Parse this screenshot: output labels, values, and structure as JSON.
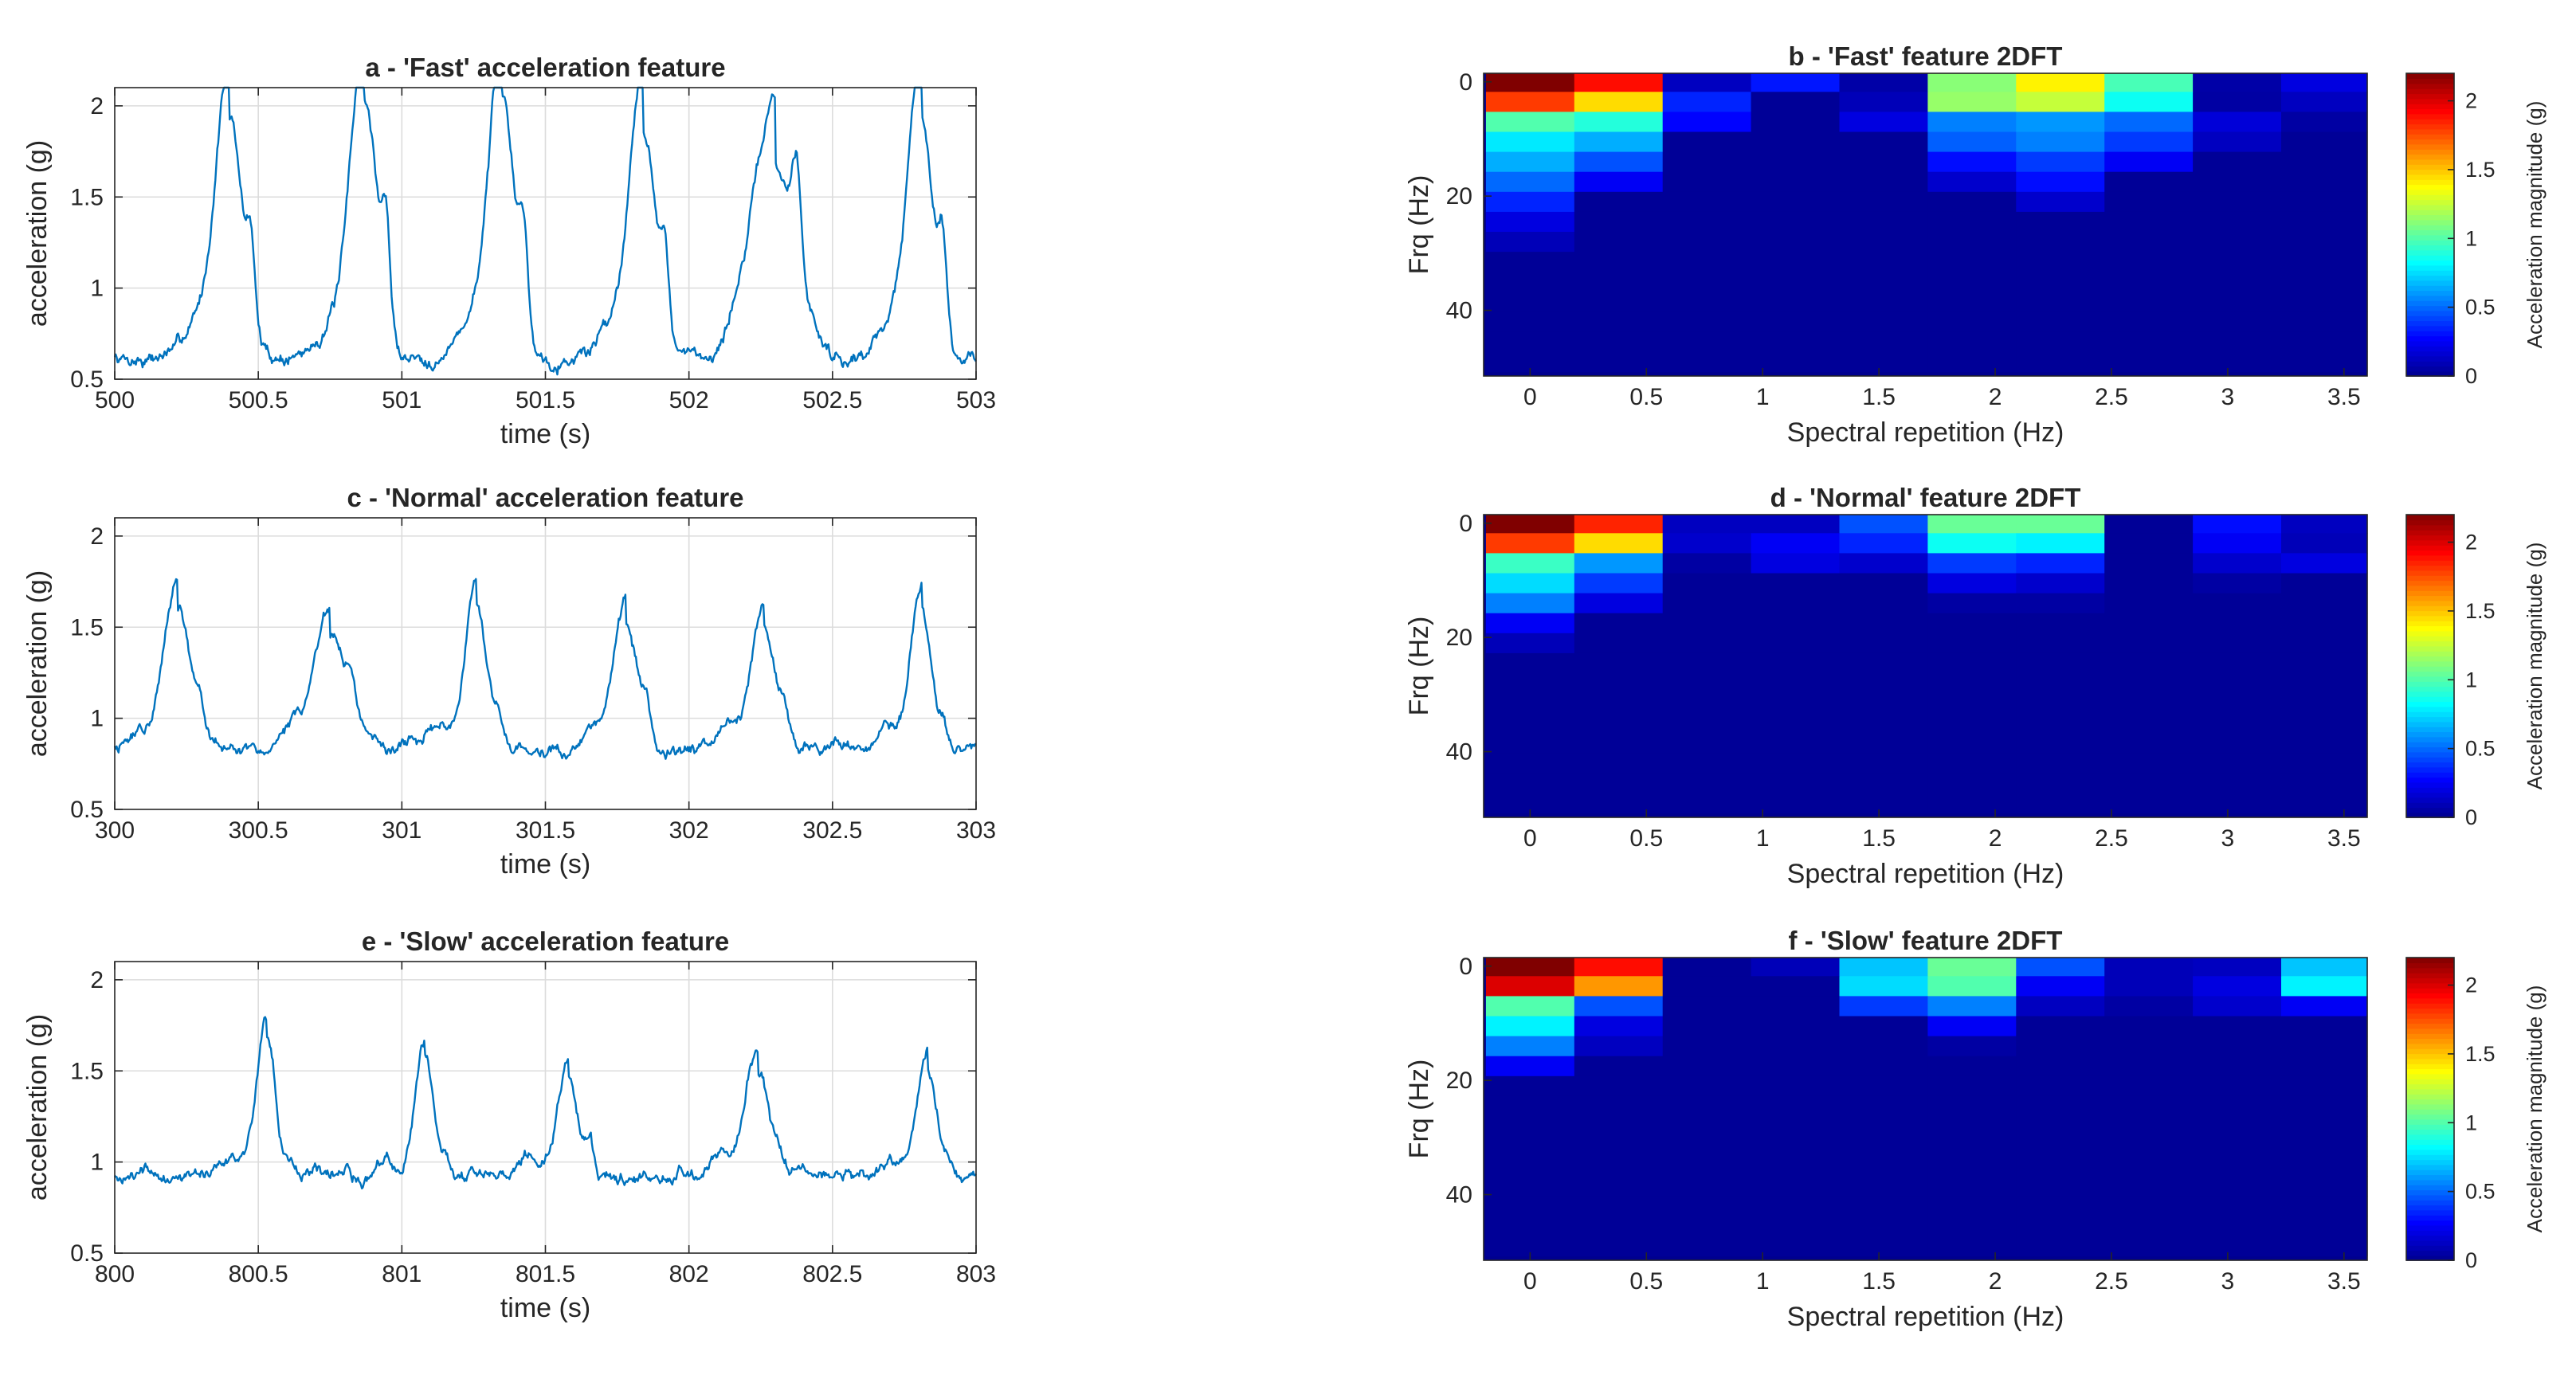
{
  "figure": {
    "line_color": "#0072bd",
    "colormap": [
      "#00008f",
      "#0000ff",
      "#0080ff",
      "#00ffff",
      "#80ff80",
      "#ffff00",
      "#ff8000",
      "#ff0000",
      "#800000"
    ]
  },
  "chart_data": [
    {
      "id": "a",
      "type": "line",
      "title": "a - 'Fast' acceleration feature",
      "xlabel": "time (s)",
      "ylabel": "acceleration (g)",
      "xlim": [
        500,
        503
      ],
      "ylim": [
        0.5,
        2.1
      ],
      "xticks": [
        500,
        500.5,
        501,
        501.5,
        502,
        502.5,
        503
      ],
      "xticklabels": [
        "500",
        "500.5",
        "501",
        "501.5",
        "502",
        "502.5",
        "503"
      ],
      "yticks": [
        0.5,
        1,
        1.5,
        2
      ],
      "yticklabels": [
        "0.5",
        "1",
        "1.5",
        "2"
      ],
      "grid": true,
      "start": 500,
      "base": 0.62,
      "noise": 0.04,
      "beats": [
        {
          "t": 500.4,
          "p": 1.92,
          "w": 0.045,
          "s": 1.37,
          "rise": 0.9
        },
        {
          "t": 500.87,
          "p": 2.04,
          "w": 0.045,
          "s": 1.54,
          "rise": 0.85
        },
        {
          "t": 501.35,
          "p": 2.02,
          "w": 0.045,
          "s": 1.45,
          "rise": 0.85
        },
        {
          "t": 501.84,
          "p": 1.87,
          "w": 0.045,
          "s": 1.41,
          "rise": 0.85
        },
        {
          "t": 502.3,
          "p": 1.66,
          "w": 0.075,
          "s": 1.5,
          "rise": 0.85
        },
        {
          "t": 502.81,
          "p": 1.91,
          "w": 0.045,
          "s": 1.41,
          "rise": 0.85
        }
      ]
    },
    {
      "id": "b",
      "type": "heatmap",
      "title": "b - 'Fast' feature 2DFT",
      "xlabel": "Spectral repetition (Hz)",
      "ylabel": "Frq (Hz)",
      "xlim": [
        -0.2,
        3.6
      ],
      "ylim": [
        51.5,
        -1.5
      ],
      "xticks": [
        0,
        0.5,
        1,
        1.5,
        2,
        2.5,
        3,
        3.5
      ],
      "xticklabels": [
        "0",
        "0.5",
        "1",
        "1.5",
        "2",
        "2.5",
        "3",
        "3.5"
      ],
      "yticks": [
        0,
        20,
        40
      ],
      "yticklabels": [
        "0",
        "20",
        "40"
      ],
      "x_centers": [
        0,
        0.38,
        0.76,
        1.14,
        1.52,
        1.9,
        2.28,
        2.66,
        3.04,
        3.42
      ],
      "y_centers": [
        0,
        3.5,
        7,
        10.5,
        14,
        17.5,
        21,
        24.5,
        28,
        31.5,
        35,
        38.5,
        42,
        45.5,
        49
      ],
      "clim": [
        0,
        2.2
      ],
      "colorbar": {
        "label": "Acceleration magnitude (g)",
        "ticks": [
          0,
          0.5,
          1,
          1.5,
          2
        ],
        "ticklabels": [
          "0",
          "0.5",
          "1",
          "1.5",
          "2"
        ]
      },
      "z": [
        [
          2.2,
          1.9,
          0.12,
          0.32,
          0.06,
          1.12,
          1.4,
          0.98,
          0.06,
          0.2
        ],
        [
          1.8,
          1.45,
          0.35,
          0.02,
          0.1,
          1.15,
          1.25,
          0.85,
          0.05,
          0.12
        ],
        [
          1.0,
          0.9,
          0.28,
          0.02,
          0.2,
          0.55,
          0.6,
          0.5,
          0.18,
          0.05
        ],
        [
          0.78,
          0.65,
          0.02,
          0.02,
          0.02,
          0.48,
          0.55,
          0.4,
          0.12,
          0.02
        ],
        [
          0.65,
          0.45,
          0.02,
          0.02,
          0.02,
          0.3,
          0.4,
          0.25,
          0.02,
          0.02
        ],
        [
          0.5,
          0.25,
          0.02,
          0.02,
          0.02,
          0.15,
          0.3,
          0.02,
          0.02,
          0.02
        ],
        [
          0.35,
          0.02,
          0.02,
          0.02,
          0.02,
          0.02,
          0.15,
          0.02,
          0.02,
          0.02
        ],
        [
          0.2,
          0.02,
          0.02,
          0.02,
          0.02,
          0.02,
          0.02,
          0.02,
          0.02,
          0.02
        ],
        [
          0.1,
          0.02,
          0.02,
          0.02,
          0.02,
          0.02,
          0.02,
          0.02,
          0.02,
          0.02
        ],
        [
          0.02,
          0.02,
          0.02,
          0.02,
          0.02,
          0.02,
          0.02,
          0.02,
          0.02,
          0.02
        ],
        [
          0.02,
          0.02,
          0.02,
          0.02,
          0.02,
          0.02,
          0.02,
          0.02,
          0.02,
          0.02
        ],
        [
          0.02,
          0.02,
          0.02,
          0.02,
          0.02,
          0.02,
          0.02,
          0.02,
          0.02,
          0.02
        ],
        [
          0.02,
          0.02,
          0.02,
          0.02,
          0.02,
          0.02,
          0.02,
          0.02,
          0.02,
          0.02
        ],
        [
          0.02,
          0.02,
          0.02,
          0.02,
          0.02,
          0.02,
          0.02,
          0.02,
          0.02,
          0.02
        ],
        [
          0.02,
          0.02,
          0.02,
          0.02,
          0.02,
          0.02,
          0.02,
          0.02,
          0.02,
          0.02
        ]
      ]
    },
    {
      "id": "c",
      "type": "line",
      "title": "c - 'Normal' acceleration feature",
      "xlabel": "time (s)",
      "ylabel": "acceleration (g)",
      "xlim": [
        300,
        303
      ],
      "ylim": [
        0.5,
        2.1
      ],
      "xticks": [
        300,
        300.5,
        301,
        301.5,
        302,
        302.5,
        303
      ],
      "xticklabels": [
        "300",
        "300.5",
        "301",
        "301.5",
        "302",
        "302.5",
        "303"
      ],
      "yticks": [
        0.5,
        1,
        1.5,
        2
      ],
      "yticklabels": [
        "0.5",
        "1",
        "1.5",
        "2"
      ],
      "grid": true,
      "start": 300,
      "base": 0.84,
      "noise": 0.035,
      "beats": [
        {
          "t": 300.22,
          "p": 1.62,
          "w": 0.045,
          "s": 1.08,
          "rise": 0.35
        },
        {
          "t": 300.75,
          "p": 1.48,
          "w": 0.055,
          "s": 1.08,
          "rise": 0.35
        },
        {
          "t": 301.26,
          "p": 1.67,
          "w": 0.035,
          "s": 1.05,
          "rise": 0.3
        },
        {
          "t": 301.78,
          "p": 1.5,
          "w": 0.04,
          "s": 1.12,
          "rise": 0.3
        },
        {
          "t": 302.26,
          "p": 1.5,
          "w": 0.04,
          "s": 1.13,
          "rise": 0.3
        },
        {
          "t": 302.81,
          "p": 1.63,
          "w": 0.035,
          "s": 1.1,
          "rise": 0.3
        }
      ]
    },
    {
      "id": "d",
      "type": "heatmap",
      "title": "d - 'Normal' feature 2DFT",
      "xlabel": "Spectral repetition (Hz)",
      "ylabel": "Frq (Hz)",
      "xlim": [
        -0.2,
        3.6
      ],
      "ylim": [
        51.5,
        -1.5
      ],
      "xticks": [
        0,
        0.5,
        1,
        1.5,
        2,
        2.5,
        3,
        3.5
      ],
      "xticklabels": [
        "0",
        "0.5",
        "1",
        "1.5",
        "2",
        "2.5",
        "3",
        "3.5"
      ],
      "yticks": [
        0,
        20,
        40
      ],
      "yticklabels": [
        "0",
        "20",
        "40"
      ],
      "x_centers": [
        0,
        0.38,
        0.76,
        1.14,
        1.52,
        1.9,
        2.28,
        2.66,
        3.04,
        3.42
      ],
      "y_centers": [
        0,
        3.5,
        7,
        10.5,
        14,
        17.5,
        21,
        24.5,
        28,
        31.5,
        35,
        38.5,
        42,
        45.5,
        49
      ],
      "clim": [
        0,
        2.2
      ],
      "colorbar": {
        "label": "Acceleration magnitude (g)",
        "ticks": [
          0,
          0.5,
          1,
          1.5,
          2
        ],
        "ticklabels": [
          "0",
          "0.5",
          "1",
          "1.5",
          "2"
        ]
      },
      "z": [
        [
          2.2,
          1.85,
          0.12,
          0.12,
          0.45,
          1.05,
          1.05,
          0.02,
          0.3,
          0.12
        ],
        [
          1.8,
          1.45,
          0.15,
          0.25,
          0.35,
          0.85,
          0.8,
          0.02,
          0.25,
          0.1
        ],
        [
          0.95,
          0.6,
          0.05,
          0.2,
          0.15,
          0.4,
          0.35,
          0.02,
          0.15,
          0.2
        ],
        [
          0.75,
          0.4,
          0.02,
          0.02,
          0.02,
          0.2,
          0.15,
          0.02,
          0.05,
          0.02
        ],
        [
          0.55,
          0.2,
          0.02,
          0.02,
          0.02,
          0.05,
          0.05,
          0.02,
          0.02,
          0.02
        ],
        [
          0.25,
          0.02,
          0.02,
          0.02,
          0.02,
          0.02,
          0.02,
          0.02,
          0.02,
          0.02
        ],
        [
          0.1,
          0.02,
          0.02,
          0.02,
          0.02,
          0.02,
          0.02,
          0.02,
          0.02,
          0.02
        ],
        [
          0.02,
          0.02,
          0.02,
          0.02,
          0.02,
          0.02,
          0.02,
          0.02,
          0.02,
          0.02
        ],
        [
          0.02,
          0.02,
          0.02,
          0.02,
          0.02,
          0.02,
          0.02,
          0.02,
          0.02,
          0.02
        ],
        [
          0.02,
          0.02,
          0.02,
          0.02,
          0.02,
          0.02,
          0.02,
          0.02,
          0.02,
          0.02
        ],
        [
          0.02,
          0.02,
          0.02,
          0.02,
          0.02,
          0.02,
          0.02,
          0.02,
          0.02,
          0.02
        ],
        [
          0.02,
          0.02,
          0.02,
          0.02,
          0.02,
          0.02,
          0.02,
          0.02,
          0.02,
          0.02
        ],
        [
          0.02,
          0.02,
          0.02,
          0.02,
          0.02,
          0.02,
          0.02,
          0.02,
          0.02,
          0.02
        ],
        [
          0.02,
          0.02,
          0.02,
          0.02,
          0.02,
          0.02,
          0.02,
          0.02,
          0.02,
          0.02
        ],
        [
          0.02,
          0.02,
          0.02,
          0.02,
          0.02,
          0.02,
          0.02,
          0.02,
          0.02,
          0.02
        ]
      ]
    },
    {
      "id": "e",
      "type": "line",
      "title": "e - 'Slow' acceleration feature",
      "xlabel": "time (s)",
      "ylabel": "acceleration (g)",
      "xlim": [
        800,
        803
      ],
      "ylim": [
        0.5,
        2.1
      ],
      "xticks": [
        800,
        800.5,
        801,
        801.5,
        802,
        802.5,
        803
      ],
      "xticklabels": [
        "800",
        "800.5",
        "801",
        "801.5",
        "802",
        "802.5",
        "803"
      ],
      "yticks": [
        0.5,
        1,
        1.5,
        2
      ],
      "yticklabels": [
        "0.5",
        "1",
        "1.5",
        "2"
      ],
      "grid": true,
      "start": 800,
      "base": 0.93,
      "noise": 0.035,
      "beats": [
        {
          "t": 800.53,
          "p": 1.7,
          "w": 0.03,
          "s": 1.07,
          "rise": 0.25
        },
        {
          "t": 801.08,
          "p": 1.57,
          "w": 0.03,
          "s": 1.12,
          "rise": 0.2
        },
        {
          "t": 801.58,
          "p": 1.48,
          "w": 0.035,
          "s": 1.18,
          "rise": 0.2
        },
        {
          "t": 802.24,
          "p": 1.53,
          "w": 0.04,
          "s": 1.05,
          "rise": 0.25
        },
        {
          "t": 802.83,
          "p": 1.47,
          "w": 0.035,
          "s": 1.05,
          "rise": 0.25
        }
      ]
    },
    {
      "id": "f",
      "type": "heatmap",
      "title": "f - 'Slow' feature 2DFT",
      "xlabel": "Spectral repetition (Hz)",
      "ylabel": "Frq (Hz)",
      "xlim": [
        -0.2,
        3.6
      ],
      "ylim": [
        51.5,
        -1.5
      ],
      "xticks": [
        0,
        0.5,
        1,
        1.5,
        2,
        2.5,
        3,
        3.5
      ],
      "xticklabels": [
        "0",
        "0.5",
        "1",
        "1.5",
        "2",
        "2.5",
        "3",
        "3.5"
      ],
      "yticks": [
        0,
        20,
        40
      ],
      "yticklabels": [
        "0",
        "20",
        "40"
      ],
      "x_centers": [
        0,
        0.38,
        0.76,
        1.14,
        1.52,
        1.9,
        2.28,
        2.66,
        3.04,
        3.42
      ],
      "y_centers": [
        0,
        3.5,
        7,
        10.5,
        14,
        17.5,
        21,
        24.5,
        28,
        31.5,
        35,
        38.5,
        42,
        45.5,
        49
      ],
      "clim": [
        0,
        2.2
      ],
      "colorbar": {
        "label": "Acceleration magnitude (g)",
        "ticks": [
          0,
          0.5,
          1,
          1.5,
          2
        ],
        "ticklabels": [
          "0",
          "0.5",
          "1",
          "1.5",
          "2"
        ]
      },
      "z": [
        [
          2.2,
          1.9,
          0.02,
          0.1,
          0.7,
          1.05,
          0.45,
          0.1,
          0.12,
          0.7
        ],
        [
          2.0,
          1.6,
          0.02,
          0.02,
          0.75,
          1.0,
          0.25,
          0.1,
          0.2,
          0.8
        ],
        [
          1.0,
          0.45,
          0.02,
          0.02,
          0.4,
          0.55,
          0.12,
          0.05,
          0.15,
          0.25
        ],
        [
          0.8,
          0.2,
          0.02,
          0.02,
          0.02,
          0.25,
          0.02,
          0.02,
          0.02,
          0.02
        ],
        [
          0.55,
          0.12,
          0.02,
          0.02,
          0.02,
          0.05,
          0.02,
          0.02,
          0.02,
          0.02
        ],
        [
          0.25,
          0.02,
          0.02,
          0.02,
          0.02,
          0.02,
          0.02,
          0.02,
          0.02,
          0.02
        ],
        [
          0.02,
          0.02,
          0.02,
          0.02,
          0.02,
          0.02,
          0.02,
          0.02,
          0.02,
          0.02
        ],
        [
          0.02,
          0.02,
          0.02,
          0.02,
          0.02,
          0.02,
          0.02,
          0.02,
          0.02,
          0.02
        ],
        [
          0.02,
          0.02,
          0.02,
          0.02,
          0.02,
          0.02,
          0.02,
          0.02,
          0.02,
          0.02
        ],
        [
          0.02,
          0.02,
          0.02,
          0.02,
          0.02,
          0.02,
          0.02,
          0.02,
          0.02,
          0.02
        ],
        [
          0.02,
          0.02,
          0.02,
          0.02,
          0.02,
          0.02,
          0.02,
          0.02,
          0.02,
          0.02
        ],
        [
          0.02,
          0.02,
          0.02,
          0.02,
          0.02,
          0.02,
          0.02,
          0.02,
          0.02,
          0.02
        ],
        [
          0.02,
          0.02,
          0.02,
          0.02,
          0.02,
          0.02,
          0.02,
          0.02,
          0.02,
          0.02
        ],
        [
          0.02,
          0.02,
          0.02,
          0.02,
          0.02,
          0.02,
          0.02,
          0.02,
          0.02,
          0.02
        ],
        [
          0.02,
          0.02,
          0.02,
          0.02,
          0.02,
          0.02,
          0.02,
          0.02,
          0.02,
          0.02
        ]
      ]
    }
  ]
}
